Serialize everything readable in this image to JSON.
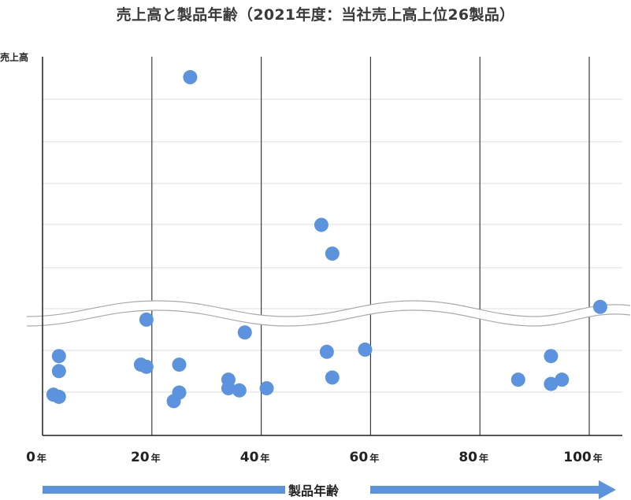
{
  "title": "売上高と製品年齢（2021年度：当社売上高上位26製品）",
  "chart_data": {
    "type": "scatter",
    "title": "売上高と製品年齢（2021年度：当社売上高上位26製品）",
    "xlabel": "製品年齢",
    "ylabel": "売上高",
    "x_unit": "年",
    "xlim": [
      0,
      105
    ],
    "xticks": [
      "0",
      "20",
      "40",
      "60",
      "80",
      "100"
    ],
    "grid": true,
    "axis_break": "y",
    "y_values_shown": false,
    "points": [
      {
        "x": 27,
        "y": 8.7
      },
      {
        "x": 51,
        "y": 5.1
      },
      {
        "x": 53,
        "y": 4.4
      },
      {
        "x": 102,
        "y": 3.1
      },
      {
        "x": 19,
        "y": 2.7
      },
      {
        "x": 37,
        "y": 2.4
      },
      {
        "x": 3,
        "y": 1.85
      },
      {
        "x": 52,
        "y": 1.95
      },
      {
        "x": 59,
        "y": 2.0
      },
      {
        "x": 93,
        "y": 1.85
      },
      {
        "x": 3,
        "y": 1.5
      },
      {
        "x": 18,
        "y": 1.65
      },
      {
        "x": 19,
        "y": 1.6
      },
      {
        "x": 25,
        "y": 1.65
      },
      {
        "x": 53,
        "y": 1.35
      },
      {
        "x": 87,
        "y": 1.3
      },
      {
        "x": 34,
        "y": 1.3
      },
      {
        "x": 95,
        "y": 1.3
      },
      {
        "x": 93,
        "y": 1.2
      },
      {
        "x": 34,
        "y": 1.1
      },
      {
        "x": 36,
        "y": 1.05
      },
      {
        "x": 41,
        "y": 1.1
      },
      {
        "x": 2,
        "y": 0.95
      },
      {
        "x": 25,
        "y": 1.0
      },
      {
        "x": 24,
        "y": 0.8
      },
      {
        "x": 3,
        "y": 0.9
      }
    ]
  },
  "colors": {
    "point": "#5b93de",
    "arrow": "#5b93de",
    "vgrid": "#3c3c3c",
    "hgrid": "#dddddd"
  }
}
